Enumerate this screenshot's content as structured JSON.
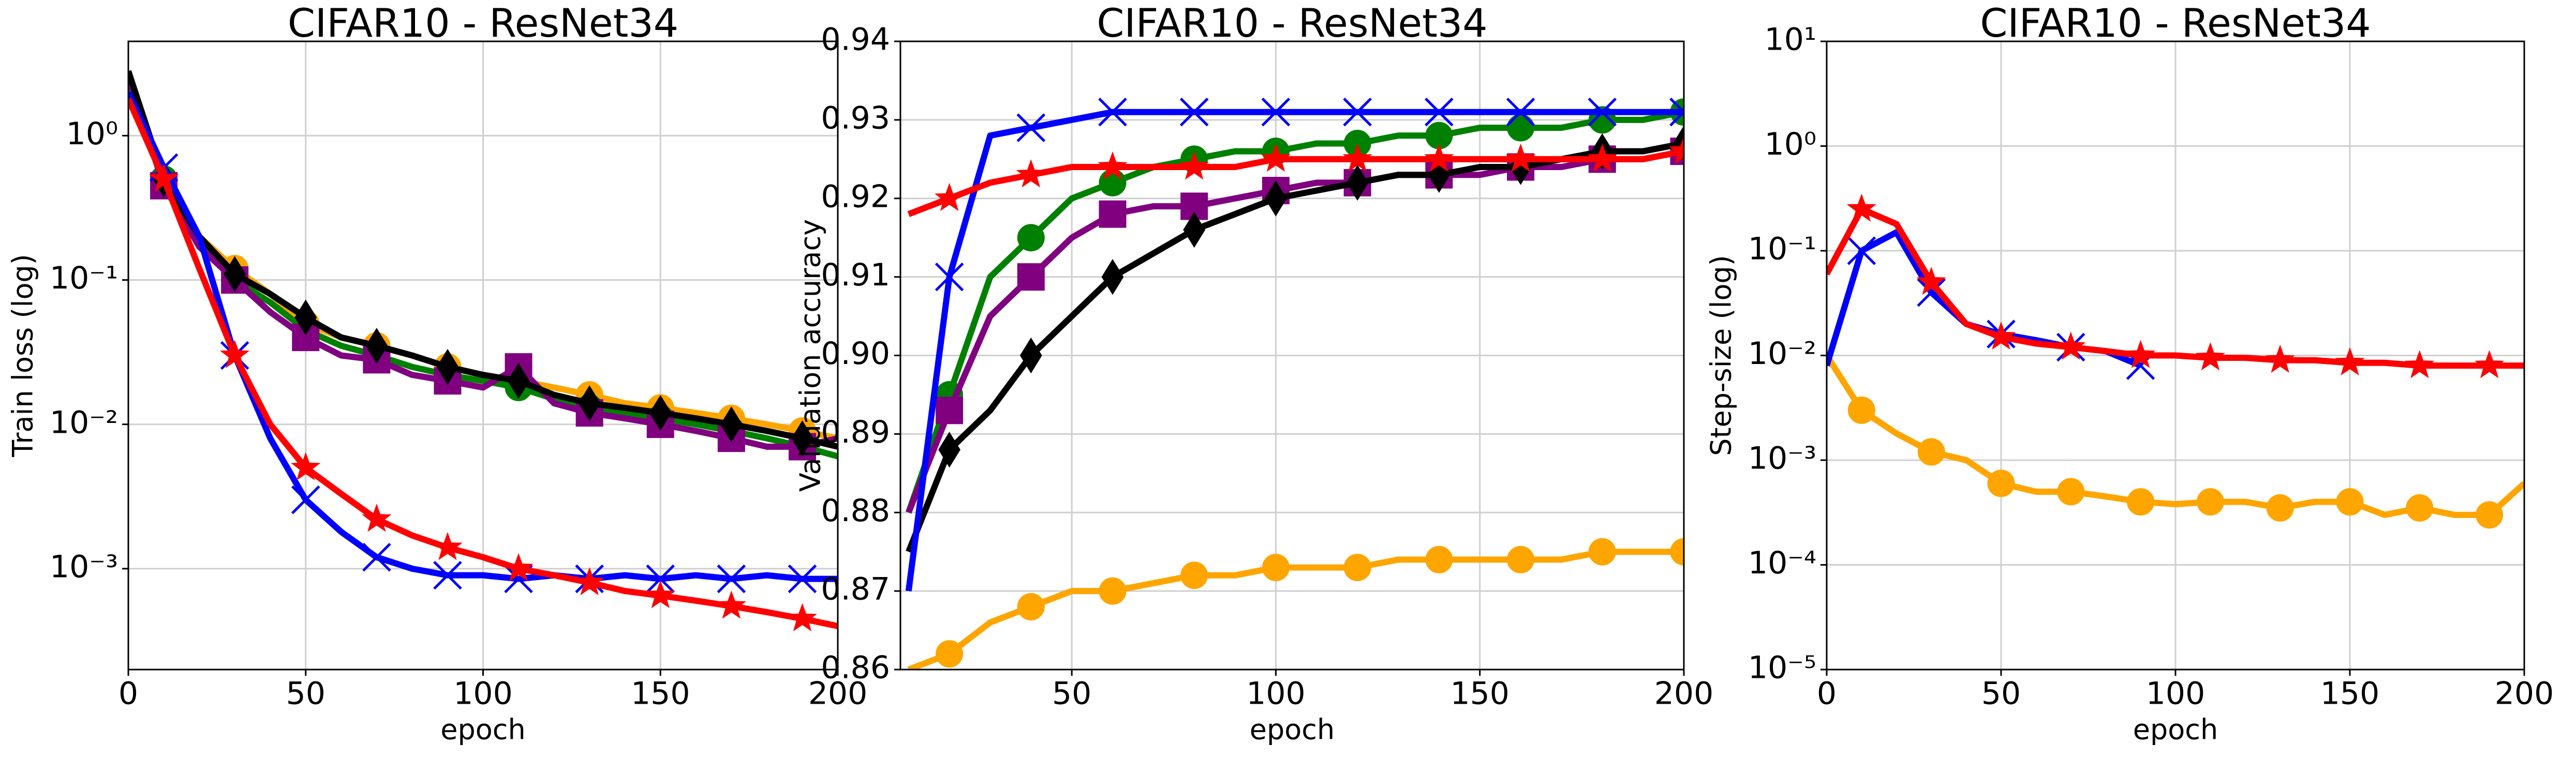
{
  "chart_data": [
    {
      "type": "line",
      "title": "CIFAR10 - ResNet34",
      "xlabel": "epoch",
      "ylabel": "Train loss (log)",
      "yscale": "log",
      "grid": true,
      "xlim": [
        0,
        200
      ],
      "xticks": [
        0,
        50,
        100,
        150,
        200
      ],
      "ylim": [
        0.0002,
        4.5
      ],
      "yticks": [
        {
          "value": 0.001,
          "label": "10⁻³"
        },
        {
          "value": 0.01,
          "label": "10⁻²"
        },
        {
          "value": 0.1,
          "label": "10⁻¹"
        },
        {
          "value": 1,
          "label": "10⁰"
        }
      ],
      "x": [
        0,
        10,
        20,
        30,
        40,
        50,
        60,
        70,
        80,
        90,
        100,
        110,
        120,
        130,
        140,
        150,
        160,
        170,
        180,
        190,
        200
      ],
      "series": [
        {
          "color": "#ffa500",
          "marker": "circle",
          "values": [
            2.5,
            0.5,
            0.2,
            0.12,
            0.08,
            0.05,
            0.04,
            0.035,
            0.03,
            0.025,
            0.022,
            0.02,
            0.018,
            0.016,
            0.014,
            0.013,
            0.012,
            0.011,
            0.01,
            0.009,
            0.008
          ]
        },
        {
          "color": "#008000",
          "marker": "circle",
          "values": [
            2.5,
            0.5,
            0.18,
            0.1,
            0.07,
            0.045,
            0.035,
            0.03,
            0.025,
            0.022,
            0.02,
            0.018,
            0.015,
            0.013,
            0.012,
            0.011,
            0.01,
            0.009,
            0.008,
            0.007,
            0.006
          ]
        },
        {
          "color": "#800080",
          "marker": "square",
          "values": [
            2.5,
            0.45,
            0.17,
            0.1,
            0.06,
            0.04,
            0.03,
            0.028,
            0.022,
            0.02,
            0.018,
            0.025,
            0.014,
            0.012,
            0.011,
            0.01,
            0.009,
            0.008,
            0.007,
            0.007,
            0.008
          ]
        },
        {
          "color": "#000000",
          "marker": "diamond",
          "values": [
            2.8,
            0.5,
            0.2,
            0.11,
            0.08,
            0.055,
            0.04,
            0.035,
            0.03,
            0.025,
            0.022,
            0.02,
            0.016,
            0.014,
            0.013,
            0.012,
            0.011,
            0.01,
            0.009,
            0.008,
            0.007
          ]
        },
        {
          "color": "#0000ff",
          "marker": "x",
          "values": [
            2,
            0.6,
            0.2,
            0.03,
            0.008,
            0.003,
            0.0018,
            0.0012,
            0.001,
            0.0009,
            0.0009,
            0.00085,
            0.0009,
            0.00085,
            0.0009,
            0.00085,
            0.0009,
            0.00085,
            0.0009,
            0.00085,
            0.00085
          ]
        },
        {
          "color": "#ff0000",
          "marker": "star",
          "values": [
            1.8,
            0.5,
            0.12,
            0.03,
            0.01,
            0.005,
            0.0033,
            0.0022,
            0.0017,
            0.0014,
            0.0012,
            0.001,
            0.0009,
            0.0008,
            0.0007,
            0.00065,
            0.0006,
            0.00055,
            0.0005,
            0.00045,
            0.0004
          ]
        }
      ]
    },
    {
      "type": "line",
      "title": "CIFAR10 - ResNet34",
      "xlabel": "epoch",
      "ylabel": "Validation accuracy",
      "grid": true,
      "xlim": [
        8,
        200
      ],
      "xticks": [
        50,
        100,
        150,
        200
      ],
      "ylim": [
        0.86,
        0.94
      ],
      "yticks": [
        0.86,
        0.87,
        0.88,
        0.89,
        {
          "value": 0.9,
          "label": "0.90"
        },
        0.91,
        0.92,
        0.93,
        0.94
      ],
      "x": [
        10,
        20,
        30,
        40,
        50,
        60,
        70,
        80,
        90,
        100,
        110,
        120,
        130,
        140,
        150,
        160,
        170,
        180,
        190,
        200
      ],
      "series": [
        {
          "color": "#ffa500",
          "marker": "circle",
          "values": [
            0.86,
            0.862,
            0.866,
            0.868,
            0.87,
            0.87,
            0.871,
            0.872,
            0.872,
            0.873,
            0.873,
            0.873,
            0.874,
            0.874,
            0.874,
            0.874,
            0.874,
            0.875,
            0.875,
            0.875
          ]
        },
        {
          "color": "#008000",
          "marker": "circle",
          "values": [
            0.88,
            0.895,
            0.91,
            0.915,
            0.92,
            0.922,
            0.924,
            0.925,
            0.926,
            0.926,
            0.927,
            0.927,
            0.928,
            0.928,
            0.929,
            0.929,
            0.929,
            0.93,
            0.93,
            0.931
          ]
        },
        {
          "color": "#800080",
          "marker": "square",
          "values": [
            0.88,
            0.893,
            0.905,
            0.91,
            0.915,
            0.918,
            0.919,
            0.919,
            0.92,
            0.921,
            0.922,
            0.922,
            0.923,
            0.923,
            0.923,
            0.924,
            0.924,
            0.925,
            0.925,
            0.926
          ]
        },
        {
          "color": "#000000",
          "marker": "diamond",
          "values": [
            0.875,
            0.888,
            0.893,
            0.9,
            0.905,
            0.91,
            0.913,
            0.916,
            0.918,
            0.92,
            0.921,
            0.922,
            0.923,
            0.923,
            0.924,
            0.924,
            0.925,
            0.926,
            0.926,
            0.927
          ]
        },
        {
          "color": "#0000ff",
          "marker": "x",
          "values": [
            0.87,
            0.91,
            0.928,
            0.929,
            0.93,
            0.931,
            0.931,
            0.931,
            0.931,
            0.931,
            0.931,
            0.931,
            0.931,
            0.931,
            0.931,
            0.931,
            0.931,
            0.931,
            0.931,
            0.931
          ]
        },
        {
          "color": "#ff0000",
          "marker": "star",
          "values": [
            0.918,
            0.92,
            0.922,
            0.923,
            0.924,
            0.924,
            0.924,
            0.924,
            0.924,
            0.925,
            0.925,
            0.925,
            0.925,
            0.925,
            0.925,
            0.925,
            0.925,
            0.925,
            0.925,
            0.926
          ]
        }
      ]
    },
    {
      "type": "line",
      "title": "CIFAR10 - ResNet34",
      "xlabel": "epoch",
      "ylabel": "Step-size (log)",
      "yscale": "log",
      "grid": true,
      "xlim": [
        0,
        200
      ],
      "xticks": [
        0,
        50,
        100,
        150,
        200
      ],
      "ylim": [
        1e-05,
        10
      ],
      "yticks": [
        {
          "value": 1e-05,
          "label": "10⁻⁵"
        },
        {
          "value": 0.0001,
          "label": "10⁻⁴"
        },
        {
          "value": 0.001,
          "label": "10⁻³"
        },
        {
          "value": 0.01,
          "label": "10⁻²"
        },
        {
          "value": 0.1,
          "label": "10⁻¹"
        },
        {
          "value": 1,
          "label": "10⁰"
        },
        {
          "value": 10,
          "label": "10¹"
        }
      ],
      "x": [
        0,
        10,
        20,
        30,
        40,
        50,
        60,
        70,
        80,
        90,
        100,
        110,
        120,
        130,
        140,
        150,
        160,
        170,
        180,
        190,
        200
      ],
      "series": [
        {
          "color": "#ffa500",
          "marker": "circle",
          "values": [
            0.01,
            0.003,
            0.0018,
            0.0012,
            0.001,
            0.0006,
            0.0005,
            0.0005,
            0.00045,
            0.0004,
            0.00038,
            0.0004,
            0.0004,
            0.00035,
            0.0004,
            0.0004,
            0.0003,
            0.00035,
            0.0003,
            0.0003,
            0.0006
          ]
        },
        {
          "color": "#0000ff",
          "marker": "x",
          "values": [
            0.008,
            0.1,
            0.15,
            0.04,
            0.02,
            0.016,
            0.014,
            0.012,
            0.011,
            0.008,
            null,
            null,
            null,
            null,
            null,
            null,
            null,
            null,
            null,
            null,
            null
          ]
        },
        {
          "color": "#ff0000",
          "marker": "star",
          "values": [
            0.06,
            0.25,
            0.18,
            0.05,
            0.02,
            0.015,
            0.013,
            0.012,
            0.011,
            0.01,
            0.01,
            0.0095,
            0.0095,
            0.009,
            0.009,
            0.0085,
            0.0085,
            0.008,
            0.008,
            0.008,
            0.008
          ]
        }
      ]
    }
  ]
}
